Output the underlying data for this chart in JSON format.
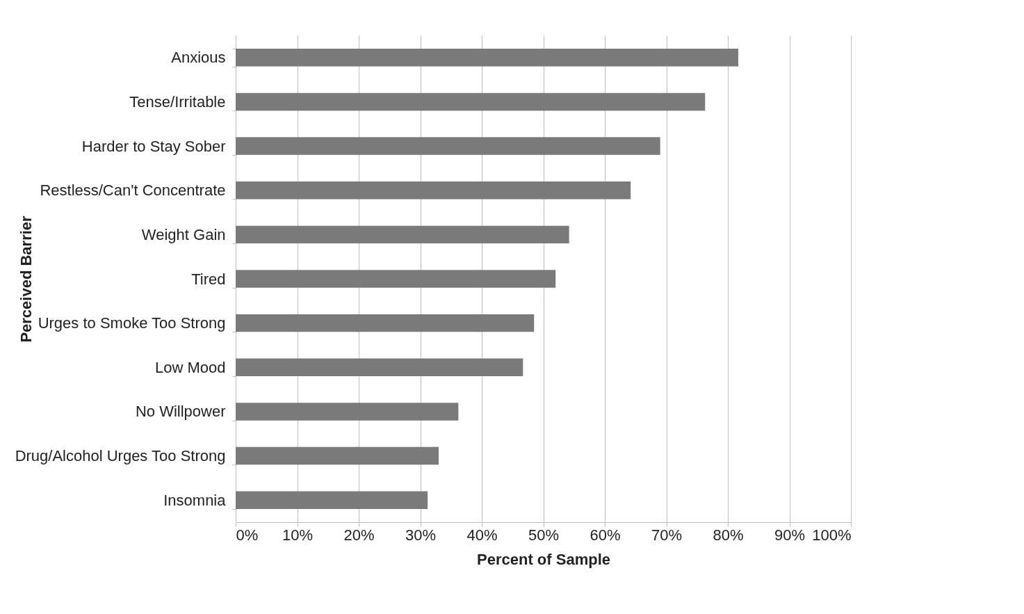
{
  "chart_data": {
    "type": "bar",
    "orientation": "horizontal",
    "xlabel": "Percent of Sample",
    "ylabel": "Perceived Barrier",
    "categories": [
      "Anxious",
      "Tense/Irritable",
      "Harder to Stay Sober",
      "Restless/Can't Concentrate",
      "Weight Gain",
      "Tired",
      "Urges to Smoke Too Strong",
      "Low Mood",
      "No Willpower",
      "Drug/Alcohol Urges Too Strong",
      "Insomnia"
    ],
    "values": [
      81.7,
      76.3,
      69.0,
      64.2,
      54.2,
      52.0,
      48.5,
      46.7,
      36.2,
      33.0,
      31.2
    ],
    "color": "#7a7a7a",
    "xlim": [
      0,
      100
    ],
    "xticks": [
      {
        "value": 0,
        "label": "0%"
      },
      {
        "value": 10,
        "label": "10%"
      },
      {
        "value": 20,
        "label": "20%"
      },
      {
        "value": 30,
        "label": "30%"
      },
      {
        "value": 40,
        "label": "40%"
      },
      {
        "value": 50,
        "label": "50%"
      },
      {
        "value": 60,
        "label": "60%"
      },
      {
        "value": 70,
        "label": "70%"
      },
      {
        "value": 80,
        "label": "80%"
      },
      {
        "value": 90,
        "label": "90%"
      },
      {
        "value": 100,
        "label": "100%"
      }
    ],
    "grid": "x"
  }
}
